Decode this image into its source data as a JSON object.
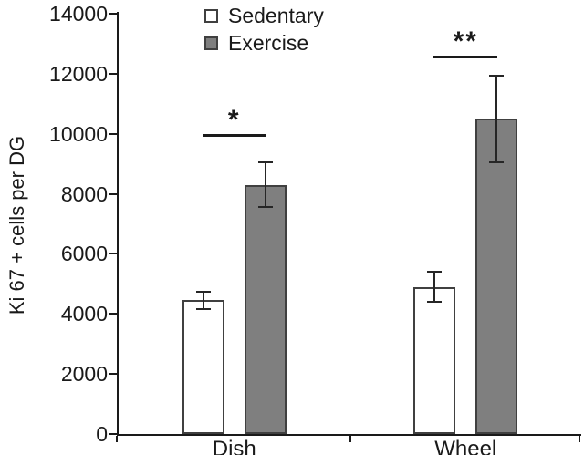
{
  "figure": {
    "background": "#ffffff"
  },
  "chart_data": {
    "type": "bar",
    "title": "",
    "xlabel": "",
    "ylabel": "Ki 67 + cells per DG",
    "categories": [
      "Dish",
      "Wheel"
    ],
    "series": [
      {
        "name": "Sedentary",
        "color": "#ffffff",
        "values": [
          4450,
          4900
        ],
        "errors": [
          300,
          500
        ]
      },
      {
        "name": "Exercise",
        "color": "#7f7f7f",
        "values": [
          8300,
          10500
        ],
        "errors": [
          750,
          1450
        ]
      }
    ],
    "ylim": [
      0,
      14000
    ],
    "yticks": [
      0,
      2000,
      4000,
      6000,
      8000,
      10000,
      12000,
      14000
    ],
    "ytick_labels": [
      "0",
      "2000",
      "4000",
      "6000",
      "8000",
      "10000",
      "12000",
      "14000"
    ],
    "grid": false,
    "legend_position": "top-center",
    "annotations": [
      {
        "category": "Dish",
        "label": "*",
        "line_y": 9900
      },
      {
        "category": "Wheel",
        "label": "**",
        "line_y": 12500
      }
    ],
    "colors": {
      "axis": "#1a1a1a",
      "text": "#1a1a1a",
      "bar_border": "#404040",
      "error_bar": "#262626",
      "sig_line": "#1a1a1a"
    }
  }
}
